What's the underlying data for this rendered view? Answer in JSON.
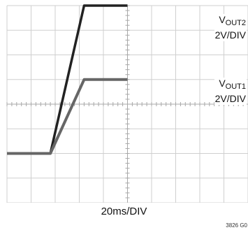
{
  "chart_data": {
    "type": "line",
    "x_unit": "ms",
    "x_per_div": 20,
    "x_divisions": 10,
    "y_divisions": 8,
    "xlabel": "20ms/DIV",
    "grid": true,
    "series": [
      {
        "name_main": "V",
        "name_sub": "OUT2",
        "scale_label": "2V/DIV",
        "color": "#222222",
        "unit": "V",
        "volts_per_div": 2,
        "x": [
          0,
          36,
          64,
          100
        ],
        "y": [
          0,
          0,
          12,
          12
        ]
      },
      {
        "name_main": "V",
        "name_sub": "OUT1",
        "scale_label": "2V/DIV",
        "color": "#666666",
        "unit": "V",
        "volts_per_div": 2,
        "x": [
          0,
          36,
          64,
          100
        ],
        "y": [
          0,
          0,
          6,
          6
        ]
      }
    ]
  },
  "figure_id": "3826 G0"
}
